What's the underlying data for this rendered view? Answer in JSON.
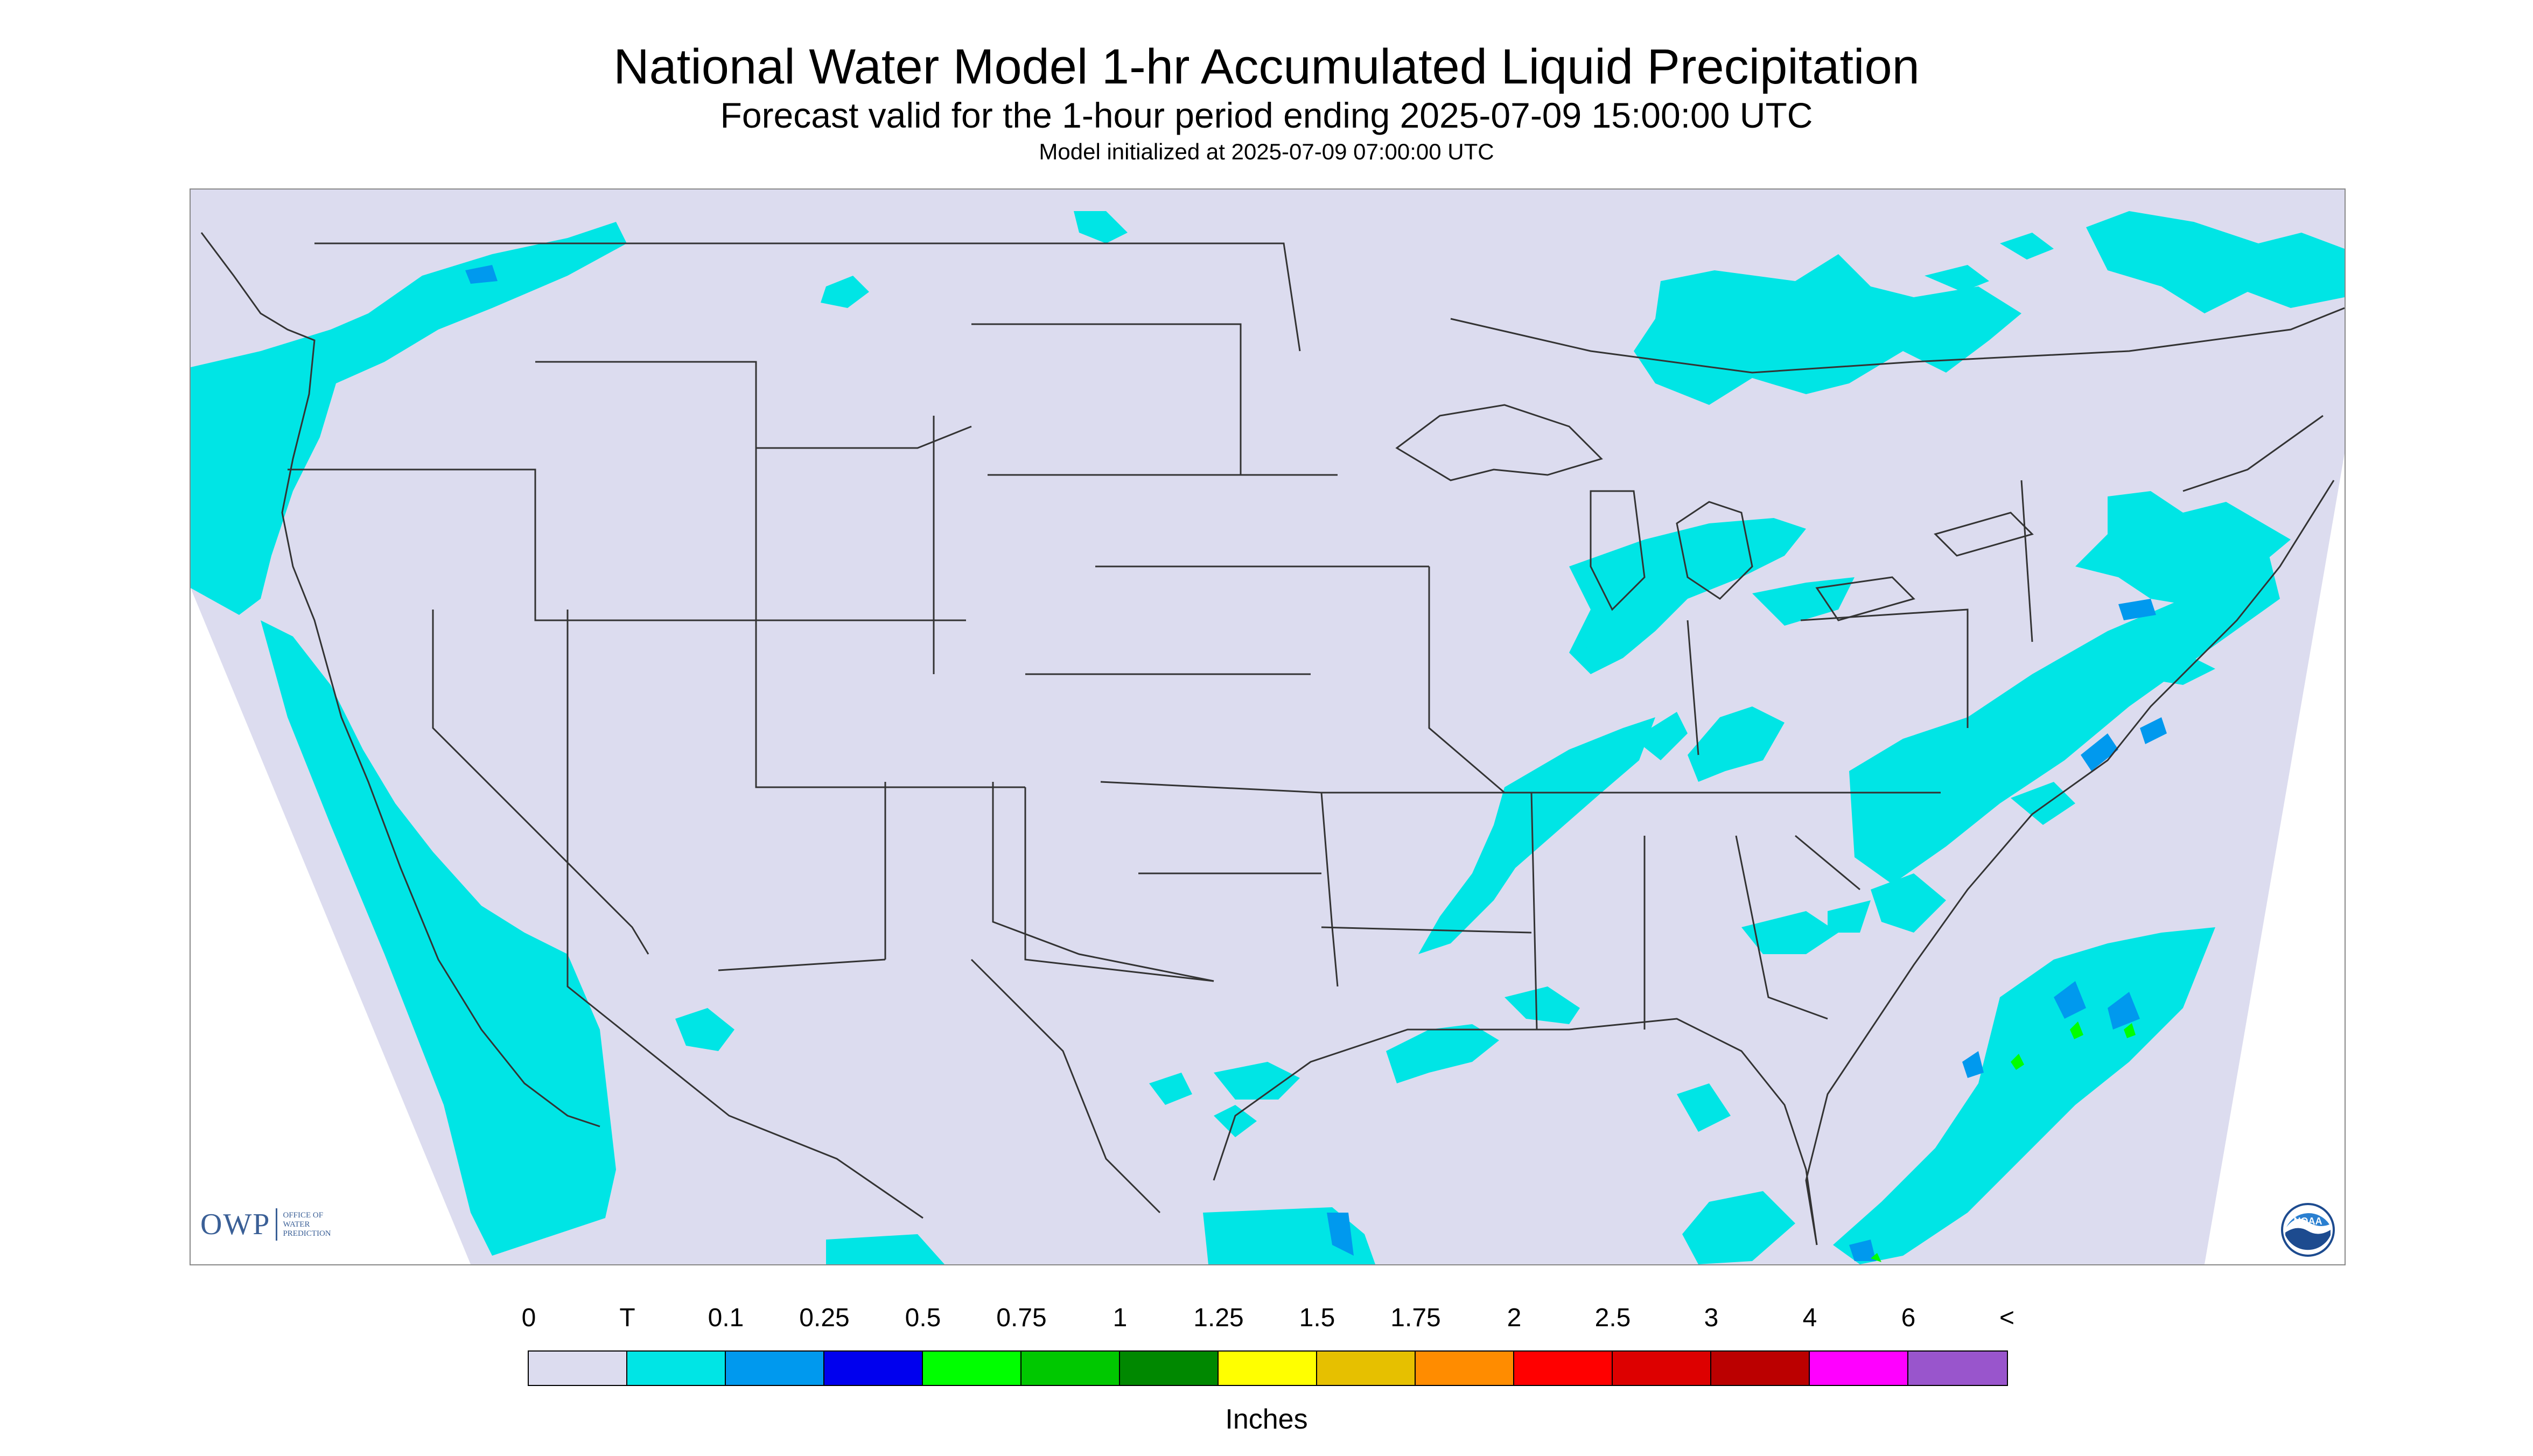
{
  "title": "National Water Model 1-hr Accumulated Liquid Precipitation",
  "subtitle": "Forecast valid for the 1-hour period ending 2025-07-09 15:00:00 UTC",
  "init_text": "Model initialized at 2025-07-09 07:00:00 UTC",
  "logos": {
    "owp": {
      "main": "OWP",
      "sub_lines": [
        "OFFICE OF",
        "WATER",
        "PREDICTION"
      ]
    },
    "noaa_text": "NOAA"
  },
  "map": {
    "region": "Contiguous United States",
    "background_color": "#dcdcef",
    "outside_domain_color": "#ffffff",
    "boundary_color": "#333333"
  },
  "legend": {
    "tick_labels": [
      "0",
      "T",
      "0.1",
      "0.25",
      "0.5",
      "0.75",
      "1",
      "1.25",
      "1.5",
      "1.75",
      "2",
      "2.5",
      "3",
      "4",
      "6",
      "<"
    ],
    "colors": [
      "#dcdcef",
      "#00e5e5",
      "#0099ee",
      "#0000ee",
      "#00ff00",
      "#00c800",
      "#008800",
      "#ffff00",
      "#e6c000",
      "#ff8c00",
      "#ff0000",
      "#dd0000",
      "#bb0000",
      "#ff00ff",
      "#9955cc"
    ],
    "units_label": "Inches"
  }
}
